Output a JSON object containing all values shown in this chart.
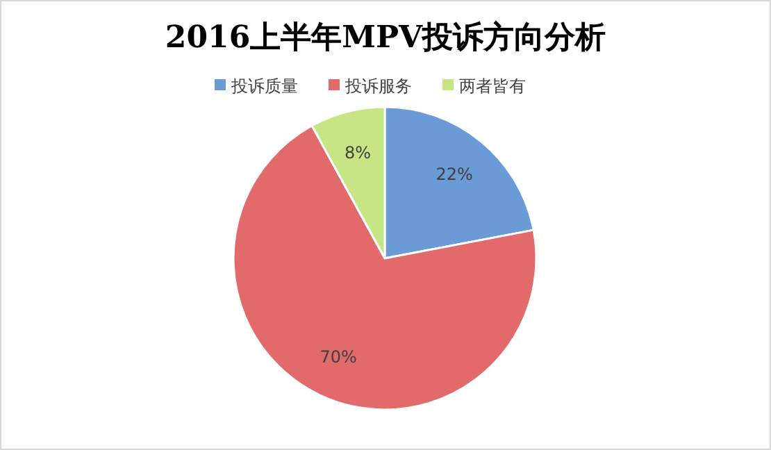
{
  "chart_data": {
    "type": "pie",
    "title": "2016上半年MPV投诉方向分析",
    "categories": [
      "投诉质量",
      "投诉服务",
      "两者皆有"
    ],
    "values": [
      22,
      70,
      8
    ],
    "value_labels": [
      "22%",
      "70%",
      "8%"
    ],
    "colors": [
      "#6b9bd6",
      "#e36a6a",
      "#c7e585"
    ],
    "legend": "top"
  }
}
